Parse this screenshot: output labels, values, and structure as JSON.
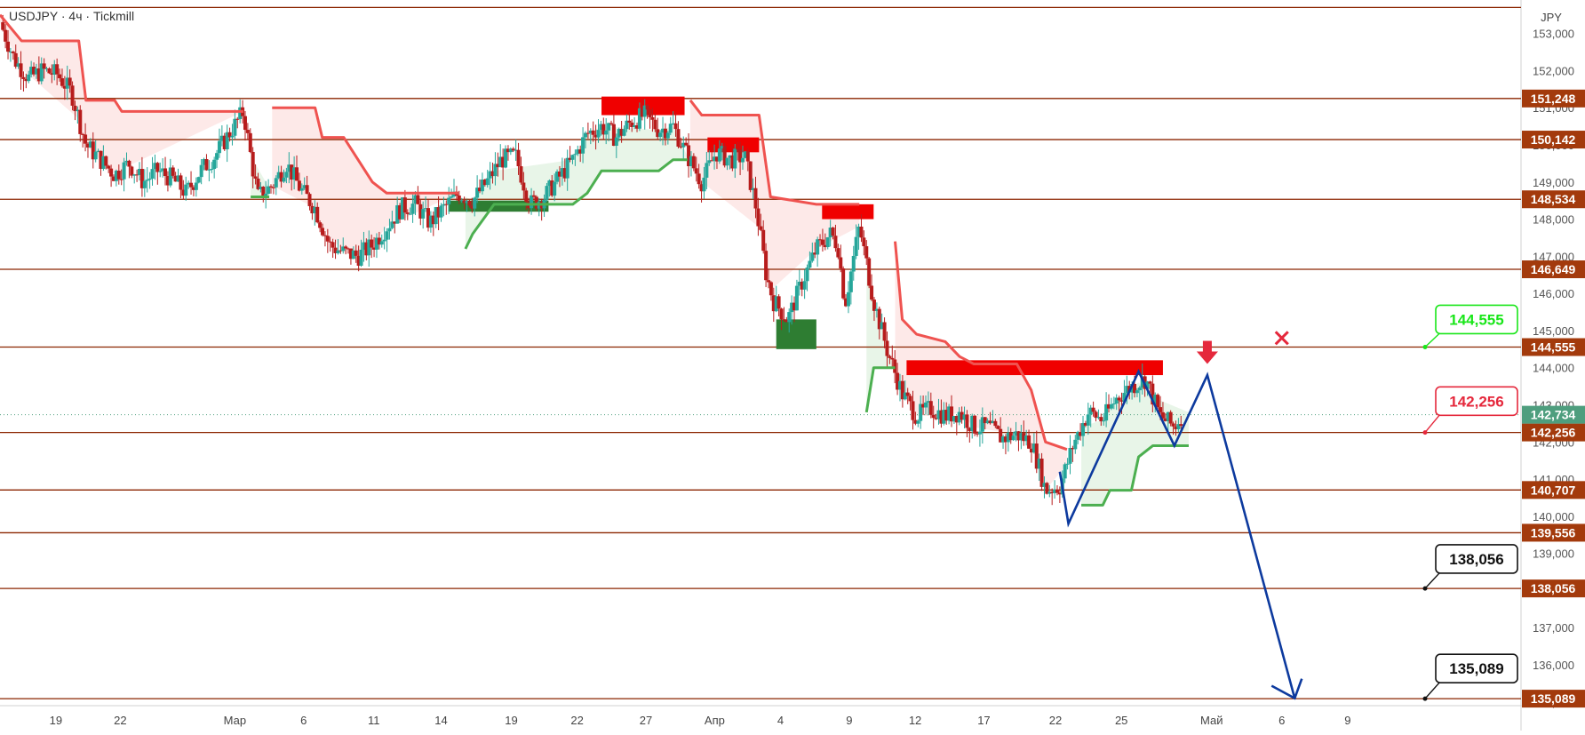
{
  "header": {
    "title": "USDJPY · 4ч · Tickmill",
    "currency": "JPY"
  },
  "colors": {
    "level_line": "#8b2500",
    "level_badge": "#a33a0c",
    "bull": "#26a69a",
    "bear": "#b71c1c",
    "supertrend_up": "#4caf50",
    "supertrend_down": "#ef5350",
    "forecast": "#0d3a9e",
    "target_green": "#19e619",
    "target_red": "#e5283c",
    "price_badge": "#4e9e7e"
  },
  "chart_data": {
    "type": "candlestick",
    "symbol": "USDJPY",
    "timeframe": "4ч",
    "broker": "Tickmill",
    "ylim": [
      134.9,
      153.9
    ],
    "yticks": [
      135,
      136,
      137,
      138,
      139,
      140,
      141,
      142,
      143,
      144,
      145,
      146,
      147,
      148,
      149,
      150,
      151,
      152,
      153
    ],
    "ytick_labels": [
      "135,000",
      "136,000",
      "137,000",
      "138,000",
      "139,000",
      "140,000",
      "141,000",
      "142,000",
      "143,000",
      "144,000",
      "145,000",
      "146,000",
      "147,000",
      "148,000",
      "149,000",
      "150,000",
      "151,000",
      "152,000",
      "153,000"
    ],
    "x_domain": [
      0,
      100
    ],
    "x_ticks": [
      {
        "label": "19",
        "x": 3.9
      },
      {
        "label": "22",
        "x": 8.4
      },
      {
        "label": "Мар",
        "x": 16.4
      },
      {
        "label": "6",
        "x": 21.2
      },
      {
        "label": "11",
        "x": 26.1
      },
      {
        "label": "14",
        "x": 30.8
      },
      {
        "label": "19",
        "x": 35.7
      },
      {
        "label": "22",
        "x": 40.3
      },
      {
        "label": "27",
        "x": 45.1
      },
      {
        "label": "Апр",
        "x": 49.9
      },
      {
        "label": "4",
        "x": 54.5
      },
      {
        "label": "9",
        "x": 59.3
      },
      {
        "label": "12",
        "x": 63.9
      },
      {
        "label": "17",
        "x": 68.7
      },
      {
        "label": "22",
        "x": 73.7
      },
      {
        "label": "25",
        "x": 78.3
      },
      {
        "label": "Май",
        "x": 84.6
      },
      {
        "label": "6",
        "x": 89.5
      },
      {
        "label": "9",
        "x": 94.1
      }
    ],
    "levels": [
      {
        "value": 153.7,
        "label": ""
      },
      {
        "value": 151.248,
        "label": "151,248"
      },
      {
        "value": 150.142,
        "label": "150,142"
      },
      {
        "value": 148.534,
        "label": "148,534"
      },
      {
        "value": 146.649,
        "label": "146,649"
      },
      {
        "value": 144.555,
        "label": "144,555"
      },
      {
        "value": 142.256,
        "label": "142,256"
      },
      {
        "value": 140.707,
        "label": "140,707"
      },
      {
        "value": 139.556,
        "label": "139,556"
      },
      {
        "value": 138.056,
        "label": "138,056"
      },
      {
        "value": 135.089,
        "label": "135,089"
      }
    ],
    "current_price": {
      "value": 142.734,
      "label": "142,734"
    },
    "price_path": [
      [
        0,
        153.3
      ],
      [
        1,
        152.3
      ],
      [
        2,
        151.8
      ],
      [
        3,
        152.0
      ],
      [
        4,
        151.9
      ],
      [
        5,
        151.4
      ],
      [
        6,
        150.0
      ],
      [
        7,
        149.6
      ],
      [
        8,
        149.2
      ],
      [
        9,
        149.5
      ],
      [
        10,
        149.0
      ],
      [
        11,
        149.3
      ],
      [
        12,
        149.1
      ],
      [
        13,
        148.7
      ],
      [
        14,
        149.3
      ],
      [
        15,
        149.7
      ],
      [
        16,
        150.3
      ],
      [
        17,
        150.9
      ],
      [
        17.5,
        149.7
      ],
      [
        18,
        148.6
      ],
      [
        19,
        148.9
      ],
      [
        20,
        149.5
      ],
      [
        21,
        148.8
      ],
      [
        22,
        148.3
      ],
      [
        23,
        147.3
      ],
      [
        24,
        147.1
      ],
      [
        25,
        147.0
      ],
      [
        26,
        147.3
      ],
      [
        27,
        147.8
      ],
      [
        28,
        148.3
      ],
      [
        29,
        148.4
      ],
      [
        30,
        147.9
      ],
      [
        31,
        148.3
      ],
      [
        32,
        148.7
      ],
      [
        33,
        148.5
      ],
      [
        34,
        149.0
      ],
      [
        35,
        149.6
      ],
      [
        36,
        149.7
      ],
      [
        37,
        148.4
      ],
      [
        38,
        148.6
      ],
      [
        39,
        149.1
      ],
      [
        40,
        149.6
      ],
      [
        41,
        150.3
      ],
      [
        42,
        150.5
      ],
      [
        43,
        150.2
      ],
      [
        44,
        150.6
      ],
      [
        45,
        150.8
      ],
      [
        46,
        150.4
      ],
      [
        47,
        150.5
      ],
      [
        48,
        149.7
      ],
      [
        49,
        149.0
      ],
      [
        50,
        149.8
      ],
      [
        51,
        149.6
      ],
      [
        52,
        149.7
      ],
      [
        52.8,
        148.3
      ],
      [
        53.5,
        146.5
      ],
      [
        54,
        145.8
      ],
      [
        55,
        145.3
      ],
      [
        56,
        146.3
      ],
      [
        57,
        147.2
      ],
      [
        58,
        147.6
      ],
      [
        58.5,
        147.3
      ],
      [
        59,
        145.7
      ],
      [
        60,
        147.8
      ],
      [
        61,
        145.8
      ],
      [
        62,
        144.4
      ],
      [
        63,
        143.3
      ],
      [
        64,
        142.7
      ],
      [
        65,
        142.9
      ],
      [
        66,
        142.7
      ],
      [
        67,
        142.8
      ],
      [
        68,
        142.4
      ],
      [
        69,
        142.4
      ],
      [
        70,
        142.1
      ],
      [
        71,
        142.2
      ],
      [
        72,
        142.0
      ],
      [
        72.5,
        141.4
      ],
      [
        73,
        140.7
      ],
      [
        74,
        140.8
      ],
      [
        75,
        142.0
      ],
      [
        76,
        142.8
      ],
      [
        77,
        142.6
      ],
      [
        78,
        143.2
      ],
      [
        79,
        143.5
      ],
      [
        80,
        143.7
      ],
      [
        81,
        142.7
      ],
      [
        82,
        142.4
      ],
      [
        82.6,
        142.8
      ]
    ],
    "supertrend_down": [
      [
        [
          0,
          153.5
        ],
        [
          1.5,
          152.8
        ],
        [
          5.5,
          152.8
        ],
        [
          6,
          151.2
        ],
        [
          8,
          151.2
        ],
        [
          8.5,
          150.9
        ],
        [
          17,
          150.9
        ]
      ],
      [
        [
          19,
          151.0
        ],
        [
          22,
          151.0
        ],
        [
          22.5,
          150.2
        ],
        [
          24,
          150.2
        ],
        [
          25,
          149.6
        ],
        [
          26,
          149.0
        ],
        [
          27,
          148.7
        ],
        [
          32,
          148.7
        ]
      ],
      [
        [
          48.2,
          151.2
        ],
        [
          49,
          150.8
        ],
        [
          53,
          150.8
        ],
        [
          53.8,
          148.6
        ],
        [
          57,
          148.4
        ],
        [
          60,
          148.4
        ]
      ],
      [
        [
          62.5,
          147.4
        ],
        [
          63,
          145.3
        ],
        [
          64,
          144.9
        ],
        [
          66,
          144.7
        ],
        [
          67,
          144.3
        ],
        [
          68,
          144.1
        ],
        [
          71,
          144.1
        ],
        [
          72,
          143.4
        ],
        [
          73,
          142.0
        ],
        [
          74.5,
          141.8
        ]
      ]
    ],
    "supertrend_up": [
      [
        [
          17.5,
          148.6
        ],
        [
          18.8,
          148.6
        ]
      ],
      [
        [
          32.5,
          147.2
        ],
        [
          33,
          147.6
        ],
        [
          34.5,
          148.4
        ],
        [
          40,
          148.4
        ],
        [
          41,
          148.7
        ],
        [
          42,
          149.3
        ],
        [
          46,
          149.3
        ],
        [
          47,
          149.6
        ],
        [
          48,
          149.6
        ]
      ],
      [
        [
          60.5,
          142.8
        ],
        [
          61,
          144.0
        ],
        [
          62.5,
          144.0
        ]
      ],
      [
        [
          75.5,
          140.3
        ],
        [
          77,
          140.3
        ],
        [
          77.5,
          140.7
        ],
        [
          79,
          140.7
        ],
        [
          79.5,
          141.6
        ],
        [
          80.5,
          141.9
        ],
        [
          83,
          141.9
        ]
      ]
    ],
    "zones_supply": [
      {
        "x0": 42,
        "x1": 47.8,
        "y0": 150.8,
        "y1": 151.3
      },
      {
        "x0": 49.4,
        "x1": 53,
        "y0": 149.8,
        "y1": 150.2
      },
      {
        "x0": 57.4,
        "x1": 61,
        "y0": 148.0,
        "y1": 148.4
      },
      {
        "x0": 63.3,
        "x1": 81.2,
        "y0": 143.8,
        "y1": 144.2
      }
    ],
    "zones_demand": [
      {
        "x0": 31.3,
        "x1": 38.3,
        "y0": 148.2,
        "y1": 148.5
      },
      {
        "x0": 54.2,
        "x1": 57,
        "y0": 144.5,
        "y1": 145.3
      }
    ],
    "forecast_path": [
      [
        74,
        141.2
      ],
      [
        74.6,
        139.8
      ],
      [
        79.5,
        143.9
      ],
      [
        82,
        141.9
      ],
      [
        84.3,
        143.8
      ],
      [
        90.4,
        135.1
      ]
    ],
    "forecast_arrow_tip": {
      "x": 90.4,
      "y": 135.1
    },
    "entry_marker": {
      "x": 84.3,
      "y": 144.1
    },
    "stop_marker": {
      "x": 89.5,
      "y": 144.8
    },
    "callouts": [
      {
        "label": "144,555",
        "value": 144.555,
        "kind": "stop",
        "box_value": 145.3
      },
      {
        "label": "142,256",
        "value": 142.256,
        "kind": "entry",
        "box_value": 143.1
      },
      {
        "label": "138,056",
        "value": 138.056,
        "kind": "target",
        "box_value": 138.85
      },
      {
        "label": "135,089",
        "value": 135.089,
        "kind": "target",
        "box_value": 135.9
      }
    ]
  }
}
